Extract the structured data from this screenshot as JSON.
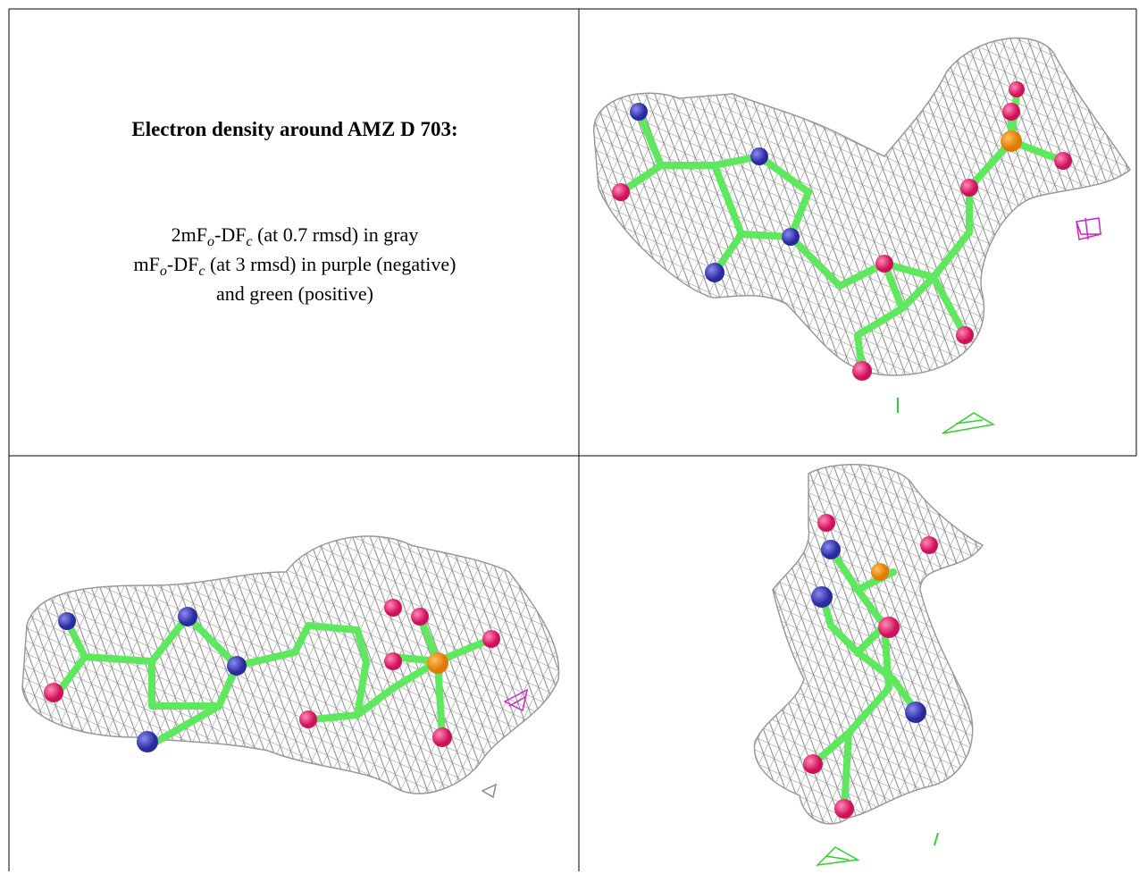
{
  "cell_text": {
    "title": "Electron density around AMZ D 703:",
    "lines": [
      [
        "2mF",
        "o",
        "-DF",
        "c",
        " (at 0.7 rmsd) in gray"
      ],
      [
        "mF",
        "o",
        "-DF",
        "c",
        " (at 3 rmsd) in purple (negative)"
      ],
      [
        "and green (positive)"
      ]
    ]
  }
}
